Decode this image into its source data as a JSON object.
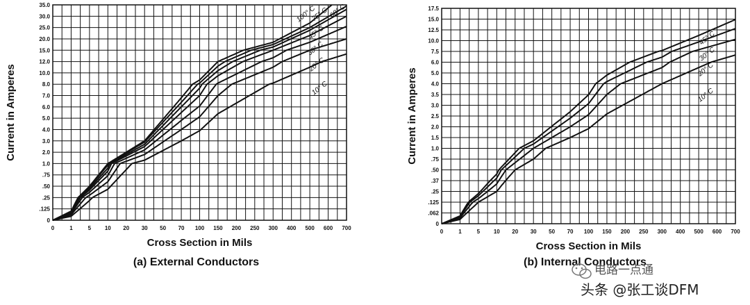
{
  "chart_data": [
    {
      "type": "line",
      "caption": "(a) External Conductors",
      "xlabel": "Cross Section in Mils",
      "ylabel": "Current in Amperes",
      "x_ticks": [
        "0",
        "1",
        "5",
        "10",
        "20",
        "30",
        "50",
        "70",
        "100",
        "150",
        "200",
        "250",
        "300",
        "400",
        "500",
        "600",
        "700"
      ],
      "y_ticks": [
        "0",
        ".125",
        ".25",
        ".50",
        ".75",
        "1.0",
        "2.0",
        "3.0",
        "4.0",
        "5.0",
        "6.0",
        "7.0",
        "8.0",
        "10.0",
        "12.0",
        "15.0",
        "20.0",
        "25.0",
        "30.0",
        "35.0"
      ],
      "y_tick_values": [
        0,
        0.125,
        0.25,
        0.5,
        0.75,
        1.0,
        2.0,
        3.0,
        4.0,
        5.0,
        6.0,
        7.0,
        8.0,
        10.0,
        12.0,
        15.0,
        20.0,
        25.0,
        30.0,
        35.0
      ],
      "series": [
        {
          "name": "10° C",
          "x": [
            0,
            30,
            70,
            150,
            300,
            500,
            700
          ],
          "y": [
            0,
            1.3,
            3.0,
            5.4,
            8.2,
            11.0,
            14.0
          ]
        },
        {
          "name": "20° C",
          "x": [
            0,
            30,
            70,
            150,
            300,
            500,
            700
          ],
          "y": [
            0,
            1.8,
            4.0,
            7.0,
            11.0,
            15.0,
            20.0
          ]
        },
        {
          "name": "30° C",
          "x": [
            0,
            30,
            70,
            150,
            300,
            500,
            700
          ],
          "y": [
            0,
            2.2,
            4.8,
            8.2,
            13.0,
            18.5,
            25.5
          ]
        },
        {
          "name": "45° C",
          "x": [
            0,
            30,
            70,
            150,
            300,
            500,
            700
          ],
          "y": [
            0,
            2.5,
            5.5,
            9.5,
            15.0,
            21.5,
            30.0
          ]
        },
        {
          "name": "60° C",
          "x": [
            0,
            30,
            70,
            150,
            300,
            500,
            700
          ],
          "y": [
            0,
            2.7,
            6.0,
            10.4,
            16.4,
            23.8,
            33.0
          ]
        },
        {
          "name": "75° C",
          "x": [
            0,
            30,
            70,
            150,
            300,
            500,
            700
          ],
          "y": [
            0,
            2.9,
            6.4,
            11.2,
            17.5,
            25.0,
            34.5
          ]
        },
        {
          "name": "100° C",
          "x": [
            0,
            30,
            70,
            150,
            300,
            500,
            620
          ],
          "y": [
            0,
            3.0,
            6.8,
            12.0,
            18.5,
            27.0,
            35.0
          ]
        }
      ]
    },
    {
      "type": "line",
      "caption": "(b) Internal Conductors",
      "xlabel": "Cross Section in Mils",
      "ylabel": "Current in Amperes",
      "x_ticks": [
        "0",
        "1",
        "5",
        "10",
        "20",
        "30",
        "50",
        "70",
        "100",
        "150",
        "200",
        "250",
        "300",
        "400",
        "500",
        "600",
        "700"
      ],
      "y_ticks": [
        "0",
        ".062",
        ".125",
        ".25",
        ".37",
        ".50",
        ".75",
        "1.0",
        "1.5",
        "2.0",
        "2.5",
        "3.0",
        "3.5",
        "4.0",
        "5.0",
        "6.0",
        "7.5",
        "10.0",
        "12.5",
        "15.0",
        "17.5"
      ],
      "y_tick_values": [
        0,
        0.062,
        0.125,
        0.25,
        0.37,
        0.5,
        0.75,
        1.0,
        1.5,
        2.0,
        2.5,
        3.0,
        3.5,
        4.0,
        5.0,
        6.0,
        7.5,
        10.0,
        12.5,
        15.0,
        17.5
      ],
      "series": [
        {
          "name": "10° C",
          "x": [
            0,
            30,
            70,
            150,
            300,
            500,
            700
          ],
          "y": [
            0,
            0.75,
            1.5,
            2.6,
            4.0,
            5.5,
            7.0
          ]
        },
        {
          "name": "20° C",
          "x": [
            0,
            30,
            70,
            150,
            300,
            500,
            700
          ],
          "y": [
            0,
            1.0,
            2.0,
            3.5,
            5.5,
            7.9,
            10.3
          ]
        },
        {
          "name": "30° C",
          "x": [
            0,
            30,
            70,
            150,
            300,
            500,
            700
          ],
          "y": [
            0,
            1.2,
            2.4,
            4.2,
            6.7,
            9.7,
            12.8
          ]
        },
        {
          "name": "45° C",
          "x": [
            0,
            30,
            70,
            150,
            300,
            500,
            700
          ],
          "y": [
            0,
            1.35,
            2.7,
            4.8,
            7.7,
            11.2,
            14.9
          ]
        }
      ]
    }
  ],
  "watermark": {
    "line1": "电路一点通",
    "line2": "头条 @张工谈DFM"
  }
}
